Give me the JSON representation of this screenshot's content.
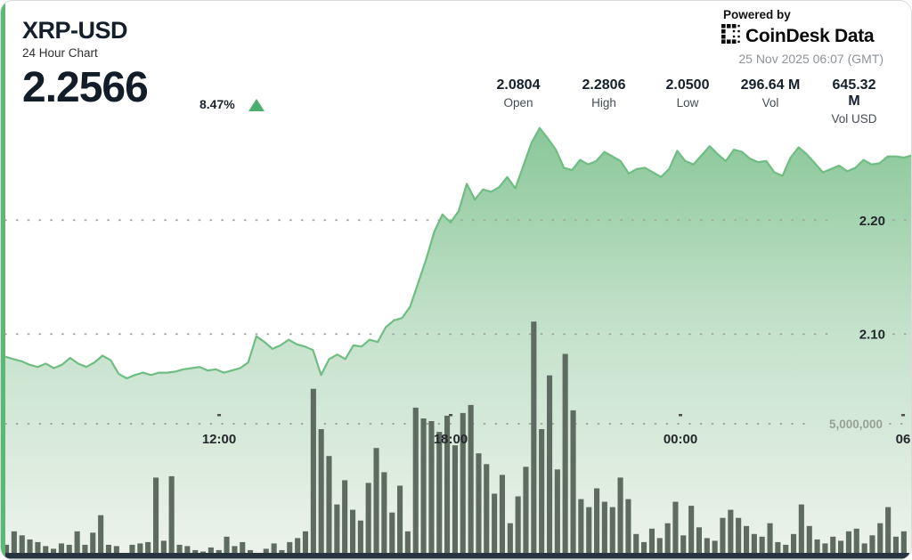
{
  "header": {
    "symbol": "XRP-USD",
    "period": "24 Hour Chart",
    "price": "2.2566",
    "change_pct": "8.47%",
    "change_direction": "up"
  },
  "branding": {
    "powered_by": "Powered by",
    "brand": "CoinDesk Data",
    "timestamp": "25 Nov 2025 06:07 (GMT)"
  },
  "stats": [
    {
      "value": "2.0804",
      "label": "Open"
    },
    {
      "value": "2.2806",
      "label": "High"
    },
    {
      "value": "2.0500",
      "label": "Low"
    },
    {
      "value": "296.64 M",
      "label": "Vol"
    },
    {
      "value": "645.32 M",
      "label": "Vol USD"
    }
  ],
  "colors": {
    "accent_green": "#5cb877",
    "line_green": "#6fbd82",
    "fill_top": "#89c798",
    "fill_mid": "#c3e1ca",
    "fill_bottom": "#edf3ec",
    "volume_bar": "#5e6b60",
    "baseline_strip": "#263440",
    "text_dark": "#23282d",
    "axis_gray": "#98a096",
    "grid_dot": "#a4a89f",
    "up_triangle": "#4bae6e"
  },
  "chart_data": {
    "type": "line+bar",
    "title": "24 Hour Chart",
    "series": [
      {
        "name": "XRP-USD price",
        "style": "area-line"
      },
      {
        "name": "Volume",
        "style": "bars"
      }
    ],
    "grid": "dotted",
    "legend": "none",
    "price_axis": {
      "side": "right",
      "min": 1.903,
      "max": 2.291,
      "ticks": [
        {
          "label": "2.20",
          "value": 2.2
        },
        {
          "label": "2.10",
          "value": 2.1
        }
      ]
    },
    "volume_axis": {
      "side": "right",
      "min": 0,
      "max_millions": 16.4,
      "ticks": [
        {
          "label": "5,000,000",
          "value_millions": 5
        }
      ]
    },
    "x_axis": {
      "ticks": [
        {
          "label": "12:00",
          "pos": 0.2393
        },
        {
          "label": "18:00",
          "pos": 0.4932
        },
        {
          "label": "00:00",
          "pos": 0.7451
        },
        {
          "label": "06",
          "pos": 0.9893
        }
      ]
    },
    "prices": [
      2.08,
      2.078,
      2.076,
      2.073,
      2.071,
      2.074,
      2.07,
      2.073,
      2.079,
      2.074,
      2.071,
      2.075,
      2.081,
      2.077,
      2.065,
      2.061,
      2.064,
      2.066,
      2.064,
      2.066,
      2.066,
      2.067,
      2.069,
      2.07,
      2.071,
      2.068,
      2.069,
      2.066,
      2.068,
      2.07,
      2.075,
      2.098,
      2.093,
      2.087,
      2.09,
      2.095,
      2.091,
      2.089,
      2.086,
      2.064,
      2.078,
      2.082,
      2.078,
      2.09,
      2.089,
      2.095,
      2.093,
      2.106,
      2.112,
      2.114,
      2.124,
      2.145,
      2.166,
      2.19,
      2.205,
      2.198,
      2.208,
      2.232,
      2.218,
      2.227,
      2.225,
      2.229,
      2.238,
      2.228,
      2.248,
      2.268,
      2.281,
      2.272,
      2.262,
      2.246,
      2.244,
      2.253,
      2.249,
      2.252,
      2.26,
      2.256,
      2.252,
      2.241,
      2.245,
      2.246,
      2.242,
      2.238,
      2.245,
      2.261,
      2.252,
      2.249,
      2.257,
      2.265,
      2.258,
      2.252,
      2.262,
      2.26,
      2.254,
      2.251,
      2.252,
      2.242,
      2.239,
      2.255,
      2.264,
      2.258,
      2.25,
      2.242,
      2.245,
      2.248,
      2.243,
      2.246,
      2.253,
      2.249,
      2.25,
      2.256,
      2.256,
      2.255,
      2.257
    ],
    "volumes_millions": [
      0.5,
      1.0,
      0.85,
      0.7,
      0.6,
      0.45,
      0.35,
      0.55,
      0.5,
      1.0,
      0.5,
      0.95,
      1.6,
      0.5,
      0.45,
      0.2,
      0.5,
      0.55,
      0.6,
      3.0,
      0.65,
      3.05,
      0.5,
      0.45,
      0.3,
      0.25,
      0.4,
      0.3,
      0.8,
      0.45,
      0.6,
      0.3,
      0.2,
      0.35,
      0.55,
      0.3,
      0.6,
      0.75,
      1.0,
      6.3,
      4.8,
      3.8,
      2.0,
      2.9,
      1.8,
      1.4,
      2.8,
      4.1,
      3.2,
      1.7,
      2.7,
      1.0,
      5.6,
      5.2,
      5.1,
      4.7,
      5.3,
      4.2,
      5.4,
      5.7,
      3.9,
      3.5,
      2.4,
      3.1,
      1.3,
      2.3,
      3.4,
      8.8,
      4.8,
      6.8,
      3.3,
      7.6,
      5.5,
      2.2,
      1.9,
      2.6,
      2.1,
      1.9,
      3.0,
      2.2,
      0.9,
      0.6,
      1.1,
      0.75,
      1.3,
      2.1,
      0.85,
      1.95,
      1.15,
      0.75,
      0.65,
      1.5,
      1.8,
      1.5,
      1.2,
      0.9,
      0.8,
      1.3,
      0.6,
      0.5,
      0.9,
      2.0,
      1.2,
      0.7,
      0.55,
      0.8,
      0.65,
      1.0,
      1.1,
      0.55,
      0.85,
      1.3,
      1.9,
      0.8,
      1.0
    ]
  }
}
